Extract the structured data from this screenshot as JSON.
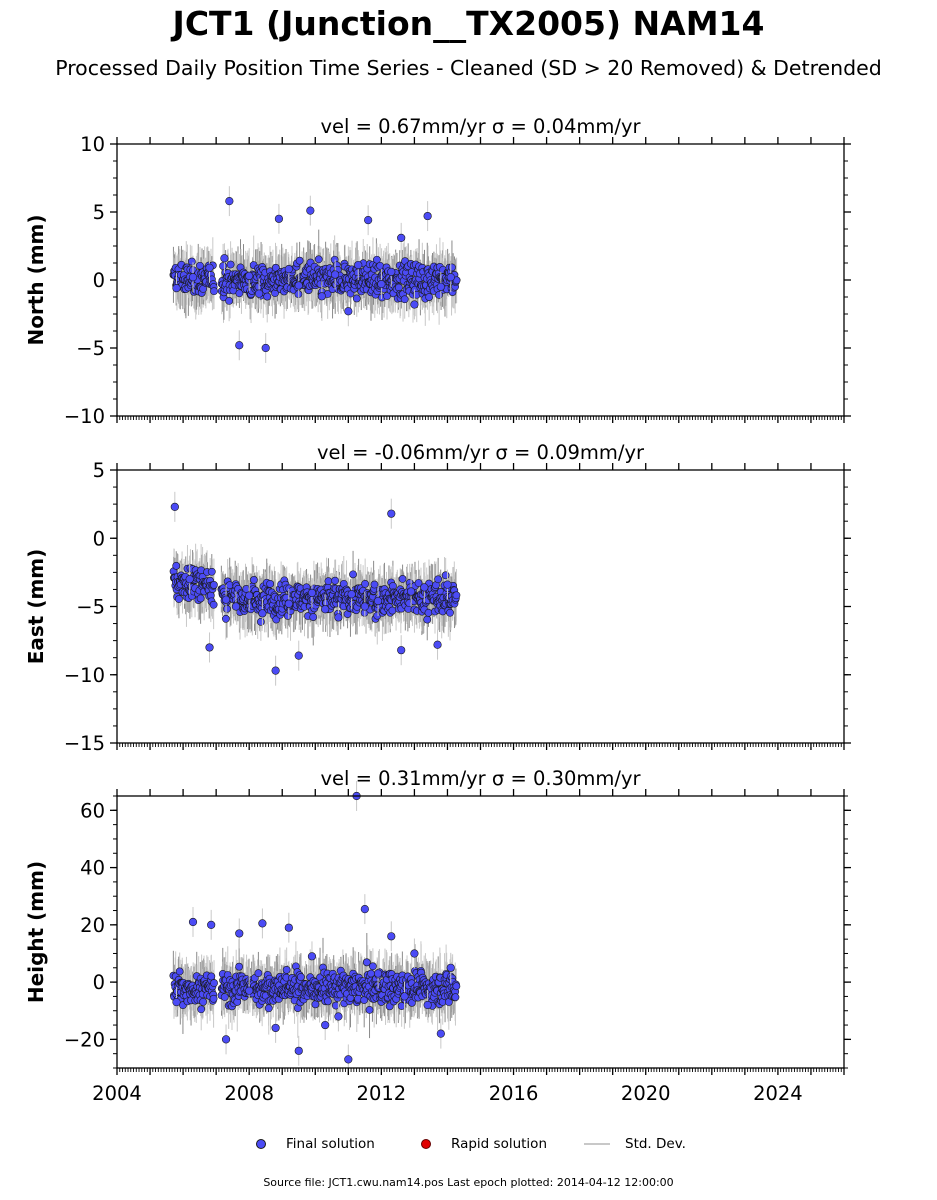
{
  "title": "JCT1 (Junction__TX2005) NAM14",
  "subtitle": "Processed Daily Position Time Series - Cleaned (SD > 20 Removed) & Detrended",
  "footer": "Source file: JCT1.cwu.nam14.pos  Last epoch plotted: 2014-04-12 12:00:00",
  "colors": {
    "final": "#4b4bf5",
    "rapid": "#e00000",
    "stddev": "#c8c8c8",
    "edge": "#1a1a1a"
  },
  "legend": [
    {
      "label": "Final solution",
      "marker": "dot",
      "color": "#4b4bf5"
    },
    {
      "label": "Rapid solution",
      "marker": "dot",
      "color": "#e00000"
    },
    {
      "label": "Std. Dev.",
      "marker": "line",
      "color": "#c8c8c8"
    }
  ],
  "chart_data": [
    {
      "type": "scatter",
      "title": "vel = 0.67mm/yr   σ = 0.04mm/yr",
      "ylabel": "North (mm)",
      "xlim": [
        2004,
        2026
      ],
      "ylim": [
        -10,
        10
      ],
      "yticks": [
        -10,
        -5,
        0,
        5,
        10
      ],
      "xticks": [
        2004,
        2008,
        2012,
        2016,
        2020,
        2024
      ],
      "show_xticklabels": false,
      "data_range": [
        2005.7,
        2014.28
      ],
      "gap": [
        2006.95,
        2007.15
      ],
      "series": [
        {
          "solution": "final",
          "x": [
            2005.8,
            2006.3,
            2006.8,
            2007.25,
            2007.4,
            2007.7,
            2008.0,
            2008.3,
            2008.5,
            2008.9,
            2009.2,
            2009.5,
            2009.85,
            2010.2,
            2010.6,
            2011.0,
            2011.3,
            2011.6,
            2012.0,
            2012.3,
            2012.6,
            2013.0,
            2013.4,
            2013.8,
            2014.1
          ],
          "y": [
            -0.6,
            0.2,
            0.9,
            1.6,
            5.8,
            -4.8,
            0.3,
            -1.0,
            -5.0,
            4.5,
            0.8,
            -0.4,
            5.1,
            -1.2,
            0.4,
            -2.3,
            1.1,
            4.4,
            -0.3,
            0.6,
            3.1,
            -1.8,
            4.7,
            -0.5,
            0.2
          ]
        }
      ]
    },
    {
      "type": "scatter",
      "title": "vel = -0.06mm/yr   σ = 0.09mm/yr",
      "ylabel": "East (mm)",
      "xlim": [
        2004,
        2026
      ],
      "ylim": [
        -15,
        5
      ],
      "yticks": [
        -15,
        -10,
        -5,
        0,
        5
      ],
      "xticks": [
        2004,
        2008,
        2012,
        2016,
        2020,
        2024
      ],
      "show_xticklabels": false,
      "data_range": [
        2005.7,
        2014.28
      ],
      "gap": [
        2006.95,
        2007.15
      ],
      "series": [
        {
          "solution": "final",
          "x": [
            2005.75,
            2006.2,
            2006.8,
            2007.3,
            2007.6,
            2008.0,
            2008.4,
            2008.8,
            2009.2,
            2009.5,
            2009.9,
            2010.3,
            2010.7,
            2011.1,
            2011.5,
            2011.9,
            2012.3,
            2012.6,
            2012.9,
            2013.3,
            2013.7,
            2014.0
          ],
          "y": [
            2.3,
            -3.0,
            -8.0,
            -4.5,
            -5.0,
            -4.2,
            -5.5,
            -9.7,
            -4.8,
            -8.6,
            -4.0,
            -5.2,
            -5.8,
            -4.1,
            -5.0,
            -4.6,
            1.8,
            -8.2,
            -3.9,
            -3.6,
            -7.8,
            -3.4
          ]
        }
      ]
    },
    {
      "type": "scatter",
      "title": "vel = 0.31mm/yr   σ = 0.30mm/yr",
      "ylabel": "Height (mm)",
      "xlim": [
        2004,
        2026
      ],
      "ylim": [
        -30,
        65
      ],
      "yticks": [
        -20,
        0,
        20,
        40,
        60
      ],
      "xticks": [
        2004,
        2008,
        2012,
        2016,
        2020,
        2024
      ],
      "show_xticklabels": true,
      "data_range": [
        2005.7,
        2014.28
      ],
      "gap": [
        2006.95,
        2007.15
      ],
      "series": [
        {
          "solution": "final",
          "x": [
            2005.8,
            2006.3,
            2006.85,
            2007.3,
            2007.7,
            2008.0,
            2008.4,
            2008.8,
            2009.2,
            2009.5,
            2009.9,
            2010.3,
            2010.7,
            2011.0,
            2011.25,
            2011.5,
            2011.9,
            2012.3,
            2012.7,
            2013.0,
            2013.4,
            2013.8,
            2014.1
          ],
          "y": [
            -7.0,
            21.0,
            20.0,
            -20.0,
            17.0,
            -3.0,
            20.5,
            -16.0,
            19.0,
            -24.0,
            9.0,
            -15.0,
            -12.0,
            -27.0,
            65.0,
            25.5,
            3.0,
            16.0,
            -5.0,
            10.0,
            -8.0,
            -18.0,
            5.0
          ]
        }
      ]
    }
  ]
}
